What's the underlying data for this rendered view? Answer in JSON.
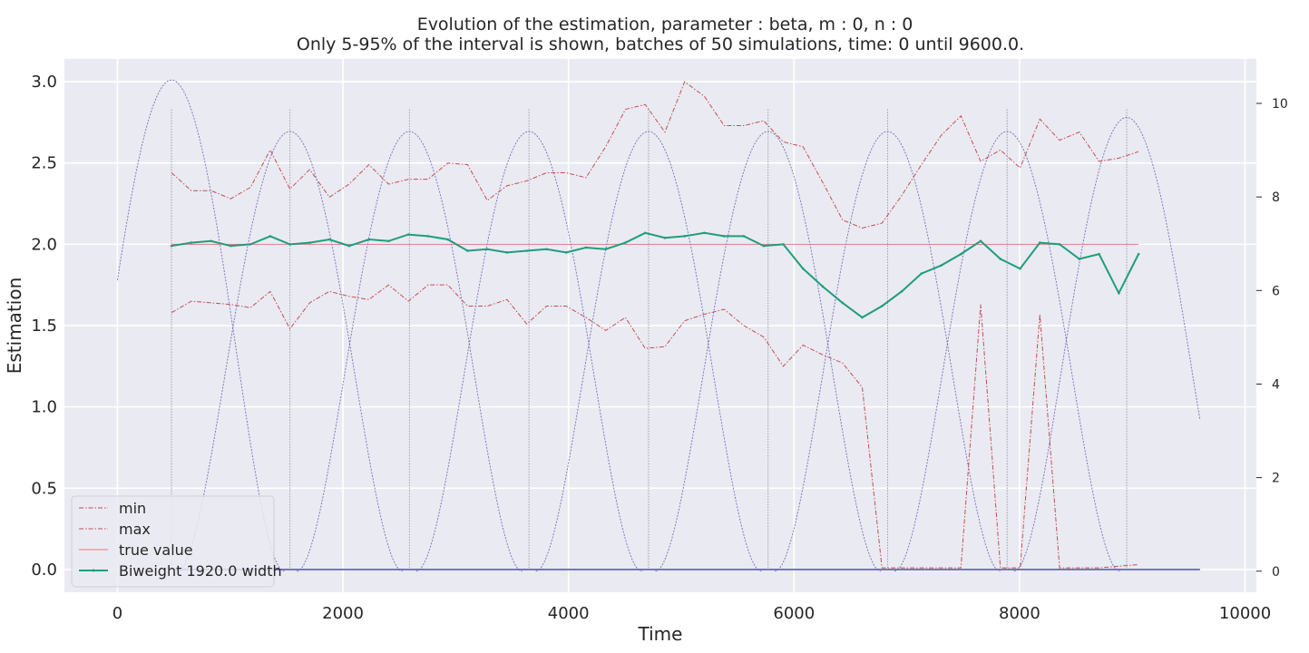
{
  "chart_data": {
    "type": "line",
    "title": "Evolution of the estimation, parameter : beta, m : 0, n : 0",
    "subtitle": "Only 5-95% of the interval is shown, batches of 50 simulations, time: 0 until 9600.0.",
    "xlabel": "Time",
    "ylabel": "Estimation",
    "xlim": [
      -470,
      10100
    ],
    "ylim": [
      -0.14,
      3.14
    ],
    "y2lim": [
      -0.45,
      10.95
    ],
    "xticks": [
      0,
      2000,
      4000,
      6000,
      8000,
      10000
    ],
    "yticks": [
      0.0,
      0.5,
      1.0,
      1.5,
      2.0,
      2.5,
      3.0
    ],
    "y2ticks": [
      0,
      2,
      4,
      6,
      8,
      10
    ],
    "grid": true,
    "legend_position": "lower-left",
    "x": [
      480,
      655,
      830,
      1005,
      1180,
      1355,
      1530,
      1705,
      1880,
      2055,
      2230,
      2405,
      2580,
      2755,
      2930,
      3105,
      3280,
      3455,
      3630,
      3805,
      3980,
      4155,
      4330,
      4505,
      4680,
      4855,
      5030,
      5205,
      5380,
      5555,
      5730,
      5905,
      6080,
      6255,
      6430,
      6605,
      6780,
      6955,
      7130,
      7305,
      7480,
      7655,
      7830,
      8005,
      8180,
      8355,
      8530,
      8705,
      8880,
      9055
    ],
    "series": [
      {
        "name": "min",
        "color": "#c44e52",
        "style": "dashdot",
        "values": [
          1.58,
          1.65,
          1.64,
          1.63,
          1.61,
          1.71,
          1.48,
          1.64,
          1.71,
          1.68,
          1.66,
          1.75,
          1.65,
          1.75,
          1.75,
          1.62,
          1.62,
          1.66,
          1.51,
          1.62,
          1.62,
          1.55,
          1.47,
          1.55,
          1.36,
          1.37,
          1.53,
          1.57,
          1.6,
          1.5,
          1.43,
          1.25,
          1.38,
          1.32,
          1.27,
          1.12,
          0.01,
          0.01,
          0.01,
          0.01,
          0.01,
          1.63,
          0.01,
          0.01,
          1.57,
          0.01,
          0.01,
          0.01,
          0.02,
          0.03
        ]
      },
      {
        "name": "max",
        "color": "#c44e52",
        "style": "dashdot",
        "values": [
          2.44,
          2.33,
          2.33,
          2.28,
          2.35,
          2.58,
          2.34,
          2.46,
          2.29,
          2.37,
          2.49,
          2.37,
          2.4,
          2.4,
          2.5,
          2.49,
          2.27,
          2.36,
          2.39,
          2.44,
          2.44,
          2.41,
          2.6,
          2.83,
          2.86,
          2.69,
          3.0,
          2.91,
          2.73,
          2.73,
          2.76,
          2.63,
          2.6,
          2.38,
          2.15,
          2.1,
          2.13,
          2.3,
          2.49,
          2.67,
          2.79,
          2.51,
          2.58,
          2.47,
          2.77,
          2.64,
          2.69,
          2.51,
          2.53,
          2.57
        ]
      },
      {
        "name": "true value",
        "color": "#e07a7e",
        "style": "solid",
        "values": [
          2.0,
          2.0,
          2.0,
          2.0,
          2.0,
          2.0,
          2.0,
          2.0,
          2.0,
          2.0,
          2.0,
          2.0,
          2.0,
          2.0,
          2.0,
          2.0,
          2.0,
          2.0,
          2.0,
          2.0,
          2.0,
          2.0,
          2.0,
          2.0,
          2.0,
          2.0,
          2.0,
          2.0,
          2.0,
          2.0,
          2.0,
          2.0,
          2.0,
          2.0,
          2.0,
          2.0,
          2.0,
          2.0,
          2.0,
          2.0,
          2.0,
          2.0,
          2.0,
          2.0,
          2.0,
          2.0,
          2.0,
          2.0,
          2.0,
          2.0
        ]
      },
      {
        "name": "Biweight 1920.0 width",
        "color": "#1f9e78",
        "style": "solid-marker",
        "values": [
          1.99,
          2.01,
          2.02,
          1.99,
          2.0,
          2.05,
          2.0,
          2.01,
          2.03,
          1.99,
          2.03,
          2.02,
          2.06,
          2.05,
          2.03,
          1.96,
          1.97,
          1.95,
          1.96,
          1.97,
          1.95,
          1.98,
          1.97,
          2.01,
          2.07,
          2.04,
          2.05,
          2.07,
          2.05,
          2.05,
          1.99,
          2.0,
          1.85,
          1.74,
          1.64,
          1.55,
          1.62,
          1.71,
          1.82,
          1.87,
          1.94,
          2.02,
          1.91,
          1.85,
          2.01,
          2.0,
          1.91,
          1.94,
          1.7,
          1.94
        ]
      }
    ],
    "kernel_curves": {
      "color": "#5a5ab0",
      "axis": "right",
      "centers": [
        480,
        1530,
        2590,
        3650,
        4710,
        5770,
        6830,
        7890,
        8950
      ],
      "peak_heights": [
        10.5,
        9.4,
        9.4,
        9.4,
        9.4,
        9.4,
        9.4,
        9.4,
        9.7
      ],
      "half_width": 1000,
      "x_range": [
        0,
        9600
      ]
    },
    "vertical_markers": {
      "color": "#a0a0b0",
      "x": [
        480,
        1530,
        2590,
        3650,
        4710,
        5770,
        6830,
        7890,
        8950
      ],
      "top": 2.83
    },
    "baseline_line": {
      "color": "#5a5ab0",
      "value": 0.0,
      "x_range": [
        480,
        9600
      ]
    }
  }
}
